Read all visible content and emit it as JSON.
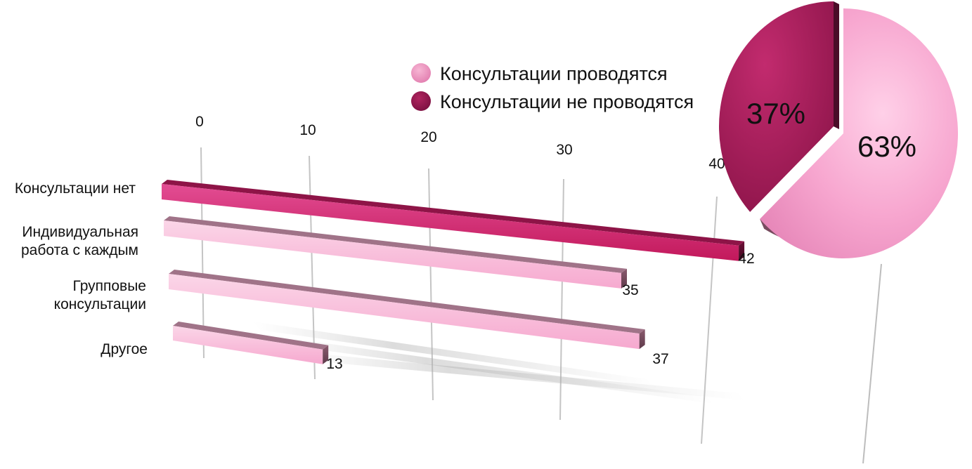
{
  "chart_data": [
    {
      "type": "bar",
      "orientation": "horizontal",
      "categories": [
        "Консультации нет",
        "Индивидуальная работа с каждым",
        "Групповые консультации",
        "Другое"
      ],
      "category_lines": [
        [
          "Консультации нет"
        ],
        [
          "Индивидуальная",
          "работа с каждым"
        ],
        [
          "Групповые",
          "консультации"
        ],
        [
          "Другое"
        ]
      ],
      "values": [
        42,
        35,
        37,
        13
      ],
      "value_labels": [
        "42",
        "35",
        "37",
        "13"
      ],
      "bar_colors": [
        "#c2185b",
        "#f6a5cc",
        "#f6a5cc",
        "#f6a5cc"
      ],
      "xlim": [
        0,
        40
      ],
      "x_ticks": [
        "0",
        "10",
        "20",
        "30",
        "40"
      ],
      "grid": true,
      "perspective": "3d"
    },
    {
      "type": "pie",
      "labels": [
        "Консультации проводятся",
        "Консультации не проводятся"
      ],
      "values": [
        63,
        37
      ],
      "value_labels": [
        "63%",
        "37%"
      ],
      "colors": [
        "#f4a6cf",
        "#a81c5c"
      ],
      "legend_position": "top-center"
    }
  ],
  "legend": {
    "items": [
      {
        "label": "Консультации проводятся",
        "color": "#e98db9"
      },
      {
        "label": "Консультации не проводятся",
        "color": "#9c1852"
      }
    ]
  }
}
